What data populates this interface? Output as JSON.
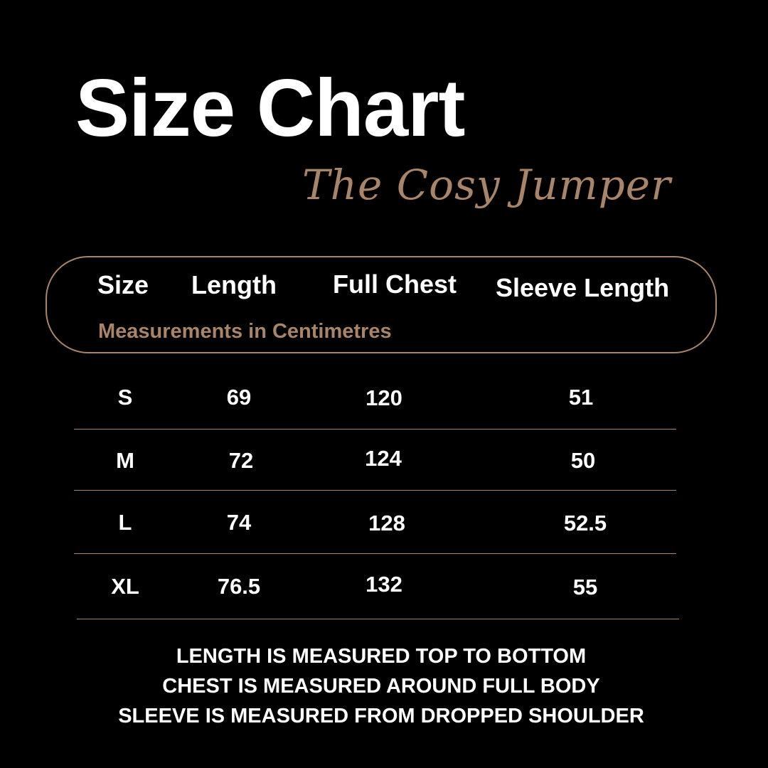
{
  "title": "Size Chart",
  "subtitle": "The Cosy Jumper",
  "header": {
    "columns": [
      "Size",
      "Length",
      "Full Chest",
      "Sleeve Length"
    ],
    "units_note": "Measurements in Centimetres"
  },
  "rows": [
    [
      "S",
      "69",
      "120",
      "51"
    ],
    [
      "M",
      "72",
      "124",
      "50"
    ],
    [
      "L",
      "74",
      "128",
      "52.5"
    ],
    [
      "XL",
      "76.5",
      "132",
      "55"
    ]
  ],
  "notes": [
    "LENGTH IS MEASURED TOP TO BOTTOM",
    "CHEST IS MEASURED AROUND FULL BODY",
    "SLEEVE IS MEASURED FROM DROPPED SHOULDER"
  ],
  "colors": {
    "background": "#000000",
    "accent": "#a88468",
    "text": "#ffffff"
  }
}
